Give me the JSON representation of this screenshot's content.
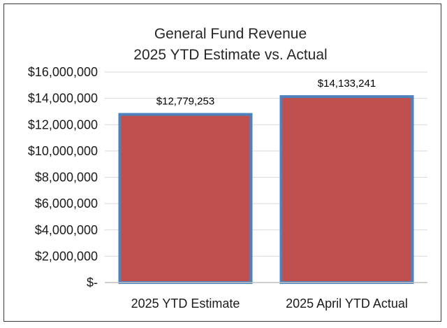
{
  "chart_data": {
    "type": "bar",
    "title": "General Fund Revenue",
    "subtitle": "2025 YTD Estimate vs. Actual",
    "categories": [
      "2025 YTD Estimate",
      "2025 April YTD Actual"
    ],
    "values": [
      12779253,
      14133241
    ],
    "data_labels": [
      "$12,779,253",
      "$14,133,241"
    ],
    "ylim": [
      0,
      16000000
    ],
    "yticks": [
      0,
      2000000,
      4000000,
      6000000,
      8000000,
      10000000,
      12000000,
      14000000,
      16000000
    ],
    "ytick_labels": [
      "$-",
      "$2,000,000",
      "$4,000,000",
      "$6,000,000",
      "$8,000,000",
      "$10,000,000",
      "$12,000,000",
      "$14,000,000",
      "$16,000,000"
    ],
    "xlabel": "",
    "ylabel": "",
    "grid": true,
    "legend": "none",
    "colors": {
      "bar_fill": "#c0504d",
      "bar_border": "#4f81bd",
      "gridline": "#d9d9d9",
      "axis": "#bfbfbf"
    }
  }
}
